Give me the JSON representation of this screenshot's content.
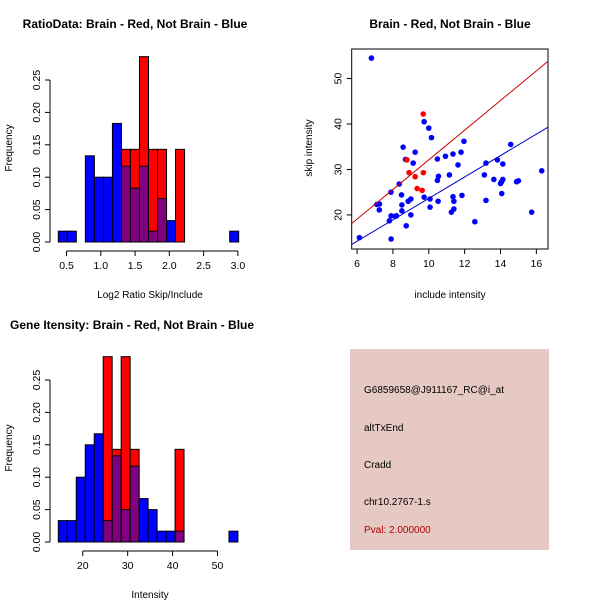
{
  "colors": {
    "blue": "#0000ff",
    "red": "#ff0000",
    "overlap": "#800080",
    "panel_bg": "#e6c9c3",
    "pval": "#b00000",
    "red_line": "#cc0000",
    "blue_line": "#0000cc"
  },
  "chart_data": [
    {
      "type": "bar",
      "subtype": "overlaid-histogram",
      "title": "RatioData: Brain - Red, Not Brain - Blue",
      "xlabel": "Log2 Ratio Skip/Include",
      "ylabel": "Frequency",
      "xlim": [
        0.38,
        3.05
      ],
      "ylim": [
        0,
        0.29
      ],
      "xticks": [
        "0.5",
        "1.0",
        "1.5",
        "2.0",
        "2.5",
        "3.0"
      ],
      "xtick_values": [
        0.5,
        1.0,
        1.5,
        2.0,
        2.5,
        3.0
      ],
      "yticks": [
        "0.00",
        "0.05",
        "0.10",
        "0.15",
        "0.20",
        "0.25"
      ],
      "ytick_values": [
        0,
        0.05,
        0.1,
        0.15,
        0.2,
        0.25
      ],
      "bin_start": 0.38,
      "bin_width": 0.1316,
      "series": [
        {
          "name": "Not Brain",
          "color": "blue",
          "values": [
            0.0167,
            0.0167,
            0,
            0.133,
            0.1,
            0.1,
            0.183,
            0.117,
            0.083,
            0.117,
            0.0167,
            0.067,
            0.033,
            0,
            0,
            0,
            0,
            0,
            0,
            0.0167
          ]
        },
        {
          "name": "Brain",
          "color": "red",
          "values": [
            0,
            0,
            0,
            0,
            0,
            0,
            0,
            0.143,
            0.143,
            0.286,
            0.143,
            0.143,
            0,
            0.143,
            0,
            0,
            0,
            0,
            0,
            0
          ]
        }
      ]
    },
    {
      "type": "scatter",
      "title": "Brain - Red, Not Brain - Blue",
      "xlabel": "include intensity",
      "ylabel": "skip intensity",
      "xlim": [
        5.7,
        16.65
      ],
      "ylim": [
        12.5,
        56.5
      ],
      "xticks": [
        "6",
        "8",
        "10",
        "12",
        "14",
        "16"
      ],
      "xtick_values": [
        6,
        8,
        10,
        12,
        14,
        16
      ],
      "yticks": [
        "20",
        "30",
        "40",
        "50"
      ],
      "ytick_values": [
        20,
        30,
        40,
        50
      ],
      "series": [
        {
          "name": "Not Brain",
          "color": "blue",
          "points": [
            [
              6.8,
              54.5
            ],
            [
              6.13,
              15.0
            ],
            [
              7.1,
              22.3
            ],
            [
              7.25,
              22.4
            ],
            [
              7.24,
              21.1
            ],
            [
              7.89,
              25.0
            ],
            [
              7.9,
              19.8
            ],
            [
              8.13,
              19.7
            ],
            [
              8.2,
              19.8
            ],
            [
              7.8,
              18.7
            ],
            [
              7.9,
              14.7
            ],
            [
              8.35,
              26.8
            ],
            [
              8.48,
              24.4
            ],
            [
              8.5,
              22.2
            ],
            [
              8.5,
              20.9
            ],
            [
              8.57,
              34.9
            ],
            [
              8.7,
              32.2
            ],
            [
              8.74,
              17.6
            ],
            [
              8.85,
              23.0
            ],
            [
              9.0,
              23.5
            ],
            [
              9.0,
              20.0
            ],
            [
              9.13,
              31.4
            ],
            [
              9.24,
              33.8
            ],
            [
              9.74,
              40.5
            ],
            [
              9.74,
              23.9
            ],
            [
              10.0,
              39.1
            ],
            [
              10.15,
              37.0
            ],
            [
              10.07,
              23.5
            ],
            [
              10.07,
              21.7
            ],
            [
              10.48,
              32.3
            ],
            [
              10.48,
              27.6
            ],
            [
              10.54,
              28.5
            ],
            [
              10.52,
              23.0
            ],
            [
              10.93,
              32.9
            ],
            [
              11.15,
              28.8
            ],
            [
              11.26,
              20.6
            ],
            [
              11.4,
              21.3
            ],
            [
              11.35,
              33.4
            ],
            [
              11.35,
              24.0
            ],
            [
              11.4,
              23.0
            ],
            [
              11.63,
              31.0
            ],
            [
              11.8,
              33.8
            ],
            [
              11.85,
              24.3
            ],
            [
              11.96,
              36.2
            ],
            [
              12.57,
              18.5
            ],
            [
              13.1,
              28.8
            ],
            [
              13.19,
              31.4
            ],
            [
              13.19,
              23.2
            ],
            [
              13.63,
              27.8
            ],
            [
              13.83,
              32.1
            ],
            [
              14.0,
              26.9
            ],
            [
              14.07,
              24.7
            ],
            [
              14.13,
              31.2
            ],
            [
              14.13,
              27.8
            ],
            [
              14.06,
              27.3
            ],
            [
              14.57,
              35.5
            ],
            [
              14.9,
              27.3
            ],
            [
              15.0,
              27.5
            ],
            [
              15.74,
              20.6
            ],
            [
              16.3,
              29.7
            ]
          ]
        },
        {
          "name": "Brain",
          "color": "red",
          "points": [
            [
              9.69,
              42.2
            ],
            [
              8.78,
              32.1
            ],
            [
              8.9,
              29.3
            ],
            [
              9.24,
              28.4
            ],
            [
              9.7,
              29.3
            ],
            [
              9.35,
              25.8
            ],
            [
              9.63,
              25.4
            ]
          ]
        }
      ],
      "fit_lines": [
        {
          "name": "Brain fit",
          "color": "red_line",
          "x": [
            5.7,
            16.65
          ],
          "y": [
            18.1,
            53.8
          ]
        },
        {
          "name": "Not Brain fit",
          "color": "blue_line",
          "x": [
            5.7,
            16.65
          ],
          "y": [
            13.5,
            39.3
          ]
        }
      ]
    },
    {
      "type": "bar",
      "subtype": "overlaid-histogram",
      "title": "Gene Itensity: Brain - Red, Not Brain - Blue",
      "xlabel": "Intensity",
      "ylabel": "Frequency",
      "xlim": [
        14.55,
        55.3
      ],
      "ylim": [
        0,
        0.29
      ],
      "xticks": [
        "20",
        "30",
        "40",
        "50"
      ],
      "xtick_values": [
        20,
        30,
        40,
        50
      ],
      "yticks": [
        "0.00",
        "0.05",
        "0.10",
        "0.15",
        "0.20",
        "0.25"
      ],
      "ytick_values": [
        0,
        0.05,
        0.1,
        0.15,
        0.2,
        0.25
      ],
      "bin_start": 14.55,
      "bin_width": 2.0,
      "series": [
        {
          "name": "Not Brain",
          "color": "blue",
          "values": [
            0.033,
            0.033,
            0.1,
            0.15,
            0.167,
            0.033,
            0.133,
            0.05,
            0.117,
            0.067,
            0.05,
            0.0167,
            0.0167,
            0.0167,
            0,
            0,
            0,
            0,
            0,
            0.0167
          ]
        },
        {
          "name": "Brain",
          "color": "red",
          "values": [
            0,
            0,
            0,
            0,
            0,
            0.286,
            0.143,
            0.286,
            0.143,
            0,
            0,
            0,
            0,
            0.143,
            0,
            0,
            0,
            0,
            0,
            0
          ]
        }
      ]
    }
  ],
  "info_panel": {
    "probe_id": "G6859658@J911167_RC@i_at",
    "event_type": "altTxEnd",
    "gene": "Cradd",
    "locus": "chr10.2767-1.s",
    "pval": "Pval: 2.000000"
  }
}
